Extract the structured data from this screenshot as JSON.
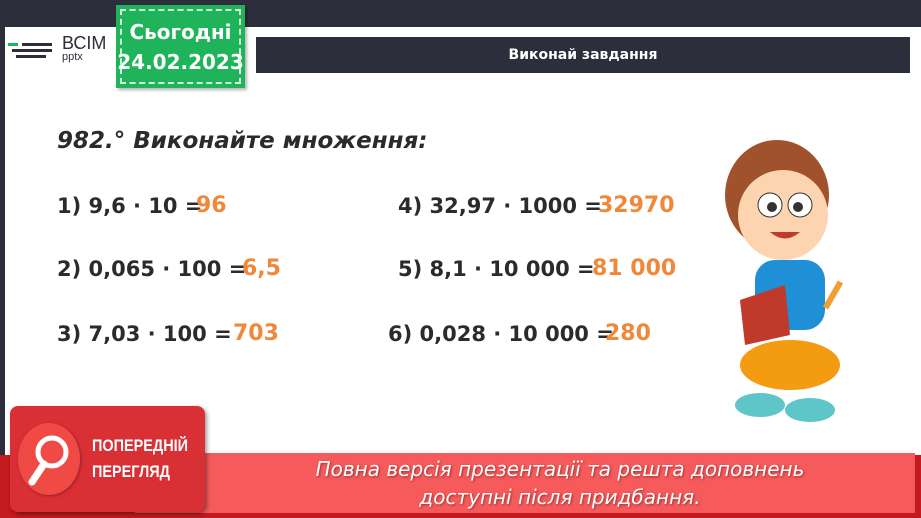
{
  "logo": {
    "name": "ВСІМ",
    "sub": "pptx"
  },
  "date_badge": {
    "label": "Сьогодні",
    "date": "24.02.2023"
  },
  "header": {
    "title": "Виконай завдання"
  },
  "task": {
    "title": "982.° Виконайте множення:",
    "items": [
      {
        "expr": "1) 9,6 · 10 =",
        "answer": "96"
      },
      {
        "expr": "2) 0,065 · 100 =",
        "answer": "6,5"
      },
      {
        "expr": "3) 7,03 · 100 =",
        "answer": "703"
      },
      {
        "expr": "4) 32,97 · 1000 =",
        "answer": "32970"
      },
      {
        "expr": "5) 8,1 · 10 000 =",
        "answer": "81 000"
      },
      {
        "expr": "6) 0,028 · 10 000 =",
        "answer": "280"
      }
    ]
  },
  "preview": {
    "line1": "ПОПЕРЕДНІЙ",
    "line2": "ПЕРЕГЛЯД"
  },
  "banner": {
    "line1": "Повна версія презентації та решта доповнень",
    "line2": "доступні після придбання."
  },
  "colors": {
    "accent": "#1fb35a",
    "answer": "#f0883a",
    "banner": "#f65a5b",
    "dark": "#2d2e3b"
  }
}
